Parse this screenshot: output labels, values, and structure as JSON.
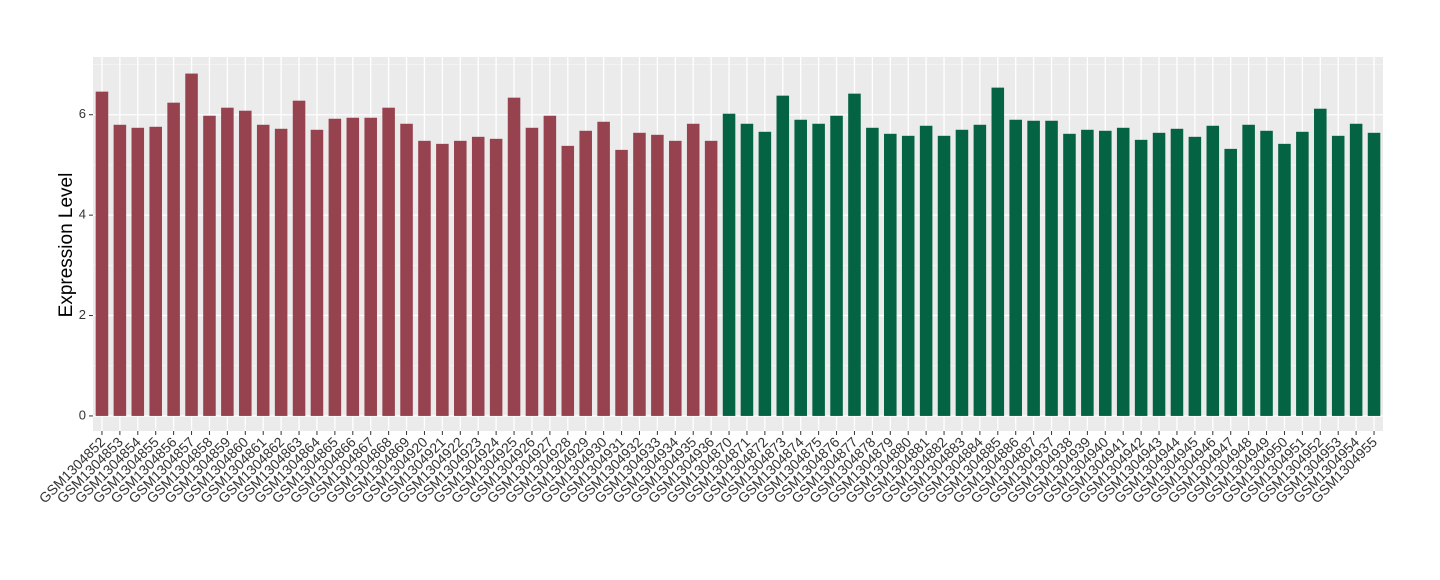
{
  "chart_data": {
    "type": "bar",
    "y_label": "Expression Level",
    "categories": [
      "GSM1304852",
      "GSM1304853",
      "GSM1304854",
      "GSM1304855",
      "GSM1304856",
      "GSM1304857",
      "GSM1304858",
      "GSM1304859",
      "GSM1304860",
      "GSM1304861",
      "GSM1304862",
      "GSM1304863",
      "GSM1304864",
      "GSM1304865",
      "GSM1304866",
      "GSM1304867",
      "GSM1304868",
      "GSM1304869",
      "GSM1304920",
      "GSM1304921",
      "GSM1304922",
      "GSM1304923",
      "GSM1304924",
      "GSM1304925",
      "GSM1304926",
      "GSM1304927",
      "GSM1304928",
      "GSM1304929",
      "GSM1304930",
      "GSM1304931",
      "GSM1304932",
      "GSM1304933",
      "GSM1304934",
      "GSM1304935",
      "GSM1304936",
      "GSM1304870",
      "GSM1304871",
      "GSM1304872",
      "GSM1304873",
      "GSM1304874",
      "GSM1304875",
      "GSM1304876",
      "GSM1304877",
      "GSM1304878",
      "GSM1304879",
      "GSM1304880",
      "GSM1304881",
      "GSM1304882",
      "GSM1304883",
      "GSM1304884",
      "GSM1304885",
      "GSM1304886",
      "GSM1304887",
      "GSM1304937",
      "GSM1304938",
      "GSM1304939",
      "GSM1304940",
      "GSM1304941",
      "GSM1304942",
      "GSM1304943",
      "GSM1304944",
      "GSM1304945",
      "GSM1304946",
      "GSM1304947",
      "GSM1304948",
      "GSM1304949",
      "GSM1304950",
      "GSM1304951",
      "GSM1304952",
      "GSM1304953",
      "GSM1304954",
      "GSM1304955"
    ],
    "values": [
      6.46,
      5.8,
      5.74,
      5.76,
      6.24,
      6.82,
      5.98,
      6.14,
      6.08,
      5.8,
      5.72,
      6.28,
      5.7,
      5.92,
      5.94,
      5.94,
      6.14,
      5.82,
      5.48,
      5.42,
      5.48,
      5.56,
      5.52,
      6.34,
      5.74,
      5.98,
      5.38,
      5.68,
      5.86,
      5.3,
      5.64,
      5.6,
      5.48,
      5.82,
      5.48,
      6.02,
      5.82,
      5.66,
      6.38,
      5.9,
      5.82,
      5.98,
      6.42,
      5.74,
      5.62,
      5.58,
      5.78,
      5.58,
      5.7,
      5.8,
      6.54,
      5.9,
      5.88,
      5.88,
      5.62,
      5.7,
      5.68,
      5.74,
      5.5,
      5.64,
      5.72,
      5.56,
      5.78,
      5.32,
      5.8,
      5.68,
      5.42,
      5.66,
      6.12,
      5.58,
      5.82,
      5.64
    ],
    "colors": [
      "#97434f",
      "#97434f",
      "#97434f",
      "#97434f",
      "#97434f",
      "#97434f",
      "#97434f",
      "#97434f",
      "#97434f",
      "#97434f",
      "#97434f",
      "#97434f",
      "#97434f",
      "#97434f",
      "#97434f",
      "#97434f",
      "#97434f",
      "#97434f",
      "#97434f",
      "#97434f",
      "#97434f",
      "#97434f",
      "#97434f",
      "#97434f",
      "#97434f",
      "#97434f",
      "#97434f",
      "#97434f",
      "#97434f",
      "#97434f",
      "#97434f",
      "#97434f",
      "#97434f",
      "#97434f",
      "#97434f",
      "#046343",
      "#046343",
      "#046343",
      "#046343",
      "#046343",
      "#046343",
      "#046343",
      "#046343",
      "#046343",
      "#046343",
      "#046343",
      "#046343",
      "#046343",
      "#046343",
      "#046343",
      "#046343",
      "#046343",
      "#046343",
      "#046343",
      "#046343",
      "#046343",
      "#046343",
      "#046343",
      "#046343",
      "#046343",
      "#046343",
      "#046343",
      "#046343",
      "#046343",
      "#046343",
      "#046343",
      "#046343",
      "#046343",
      "#046343",
      "#046343",
      "#046343",
      "#046343"
    ],
    "ylim": [
      -0.3,
      7.15
    ],
    "yticks": [
      0,
      2,
      4,
      6
    ],
    "minor_yticks": [
      1,
      3,
      5,
      7
    ],
    "grid": true
  }
}
